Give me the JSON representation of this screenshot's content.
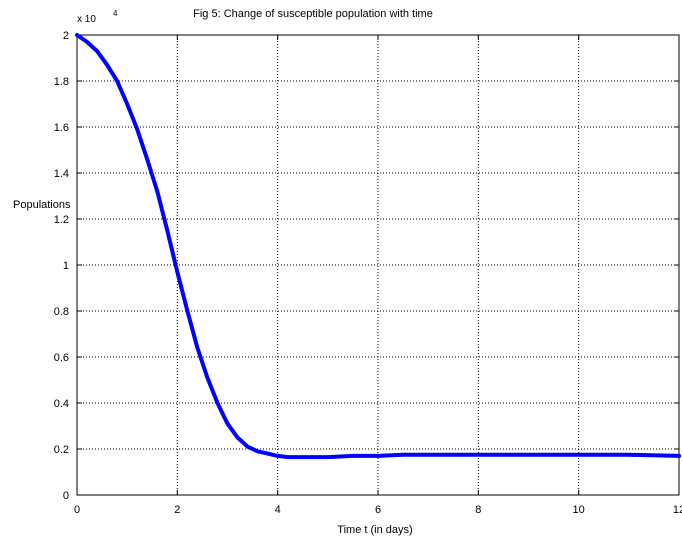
{
  "chart_data": {
    "type": "line",
    "title": "Fig 5: Change of susceptible population with time",
    "xlabel": "Time t (in days)",
    "ylabel": "Populations",
    "y_multiplier": {
      "base": "x 10",
      "exponent": "4"
    },
    "xlim": [
      0,
      12
    ],
    "ylim": [
      0,
      2
    ],
    "x_ticks": [
      0,
      2,
      4,
      6,
      8,
      10,
      12
    ],
    "y_ticks": [
      0,
      0.2,
      0.4,
      0.6,
      0.8,
      1,
      1.2,
      1.4,
      1.6,
      1.8,
      2
    ],
    "x_tick_labels": [
      "0",
      "2",
      "4",
      "6",
      "8",
      "10",
      "12"
    ],
    "y_tick_labels": [
      "0",
      "0.2",
      "0.4",
      "0.6",
      "0.8",
      "1",
      "1.2",
      "1.4",
      "1.6",
      "1.8",
      "2"
    ],
    "grid": true,
    "line_color": "#0000ff",
    "series": [
      {
        "x": [
          0,
          0.2,
          0.4,
          0.6,
          0.8,
          1.0,
          1.2,
          1.4,
          1.6,
          1.8,
          2.0,
          2.2,
          2.4,
          2.6,
          2.8,
          3.0,
          3.2,
          3.4,
          3.6,
          3.8,
          4.0,
          4.2,
          4.5,
          5.0,
          5.5,
          6.0,
          6.5,
          7.0,
          8.0,
          9.0,
          10.0,
          11.0,
          12.0
        ],
        "y": [
          2.0,
          1.97,
          1.93,
          1.87,
          1.8,
          1.7,
          1.59,
          1.46,
          1.32,
          1.15,
          0.97,
          0.8,
          0.64,
          0.51,
          0.4,
          0.31,
          0.25,
          0.21,
          0.19,
          0.18,
          0.17,
          0.165,
          0.165,
          0.165,
          0.17,
          0.17,
          0.175,
          0.175,
          0.175,
          0.175,
          0.175,
          0.175,
          0.17
        ]
      }
    ]
  }
}
